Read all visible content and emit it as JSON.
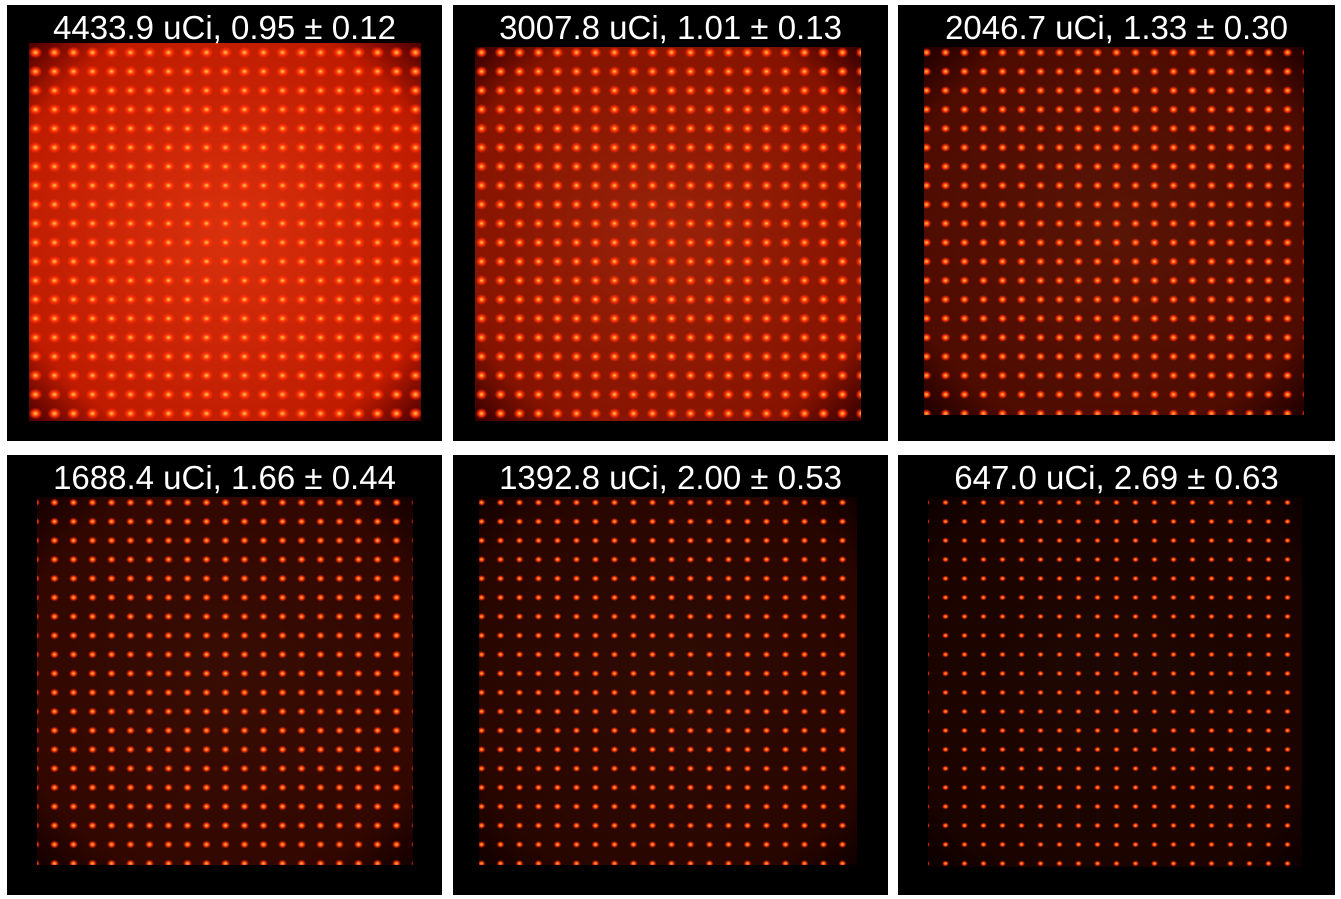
{
  "panels": [
    {
      "label": "4433.9 uCi, 0.95 ± 0.12"
    },
    {
      "label": "3007.8 uCi, 1.01 ± 0.13"
    },
    {
      "label": "2046.7 uCi, 1.33 ± 0.30"
    },
    {
      "label": "1688.4 uCi, 1.66 ± 0.44"
    },
    {
      "label": "1392.8 uCi, 2.00 ± 0.53"
    },
    {
      "label": "647.0 uCi, 2.69 ± 0.63"
    }
  ]
}
